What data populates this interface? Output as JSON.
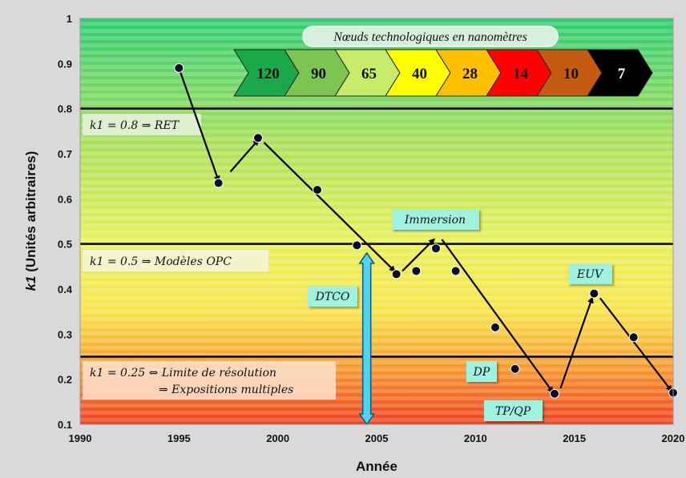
{
  "chart_data": {
    "type": "scatter",
    "xlabel": "Année",
    "ylabel_prefix": "k1",
    "ylabel_rest": " (Unités arbitraires)",
    "xlim": [
      1990,
      2020
    ],
    "ylim": [
      0.1,
      1.0
    ],
    "x_ticks": [
      "1990",
      "1995",
      "2000",
      "2005",
      "2010",
      "2015",
      "2020"
    ],
    "y_ticks": [
      "0.1",
      "0.2",
      "0.3",
      "0.4",
      "0.5",
      "0.6",
      "0.7",
      "0.8",
      "0.9",
      "1"
    ],
    "points": [
      {
        "x": 1995,
        "y": 0.89
      },
      {
        "x": 1997,
        "y": 0.635
      },
      {
        "x": 1999,
        "y": 0.735
      },
      {
        "x": 2002,
        "y": 0.62
      },
      {
        "x": 2004,
        "y": 0.497
      },
      {
        "x": 2006,
        "y": 0.433
      },
      {
        "x": 2007,
        "y": 0.44
      },
      {
        "x": 2008,
        "y": 0.49
      },
      {
        "x": 2009,
        "y": 0.44
      },
      {
        "x": 2011,
        "y": 0.315
      },
      {
        "x": 2012,
        "y": 0.223
      },
      {
        "x": 2014,
        "y": 0.168
      },
      {
        "x": 2016,
        "y": 0.39
      },
      {
        "x": 2018,
        "y": 0.293
      },
      {
        "x": 2020,
        "y": 0.17
      }
    ],
    "threshold_lines": [
      0.8,
      0.5,
      0.25
    ],
    "arrows": [
      {
        "from": [
          1995,
          0.89
        ],
        "to": [
          1997,
          0.64
        ]
      },
      {
        "from": [
          1997.6,
          0.66
        ],
        "to": [
          1999,
          0.73
        ]
      },
      {
        "from": [
          1999.3,
          0.725
        ],
        "to": [
          2005.9,
          0.44
        ]
      },
      {
        "from": [
          2006.3,
          0.44
        ],
        "to": [
          2007.9,
          0.51
        ]
      },
      {
        "from": [
          2008.3,
          0.51
        ],
        "to": [
          2013.9,
          0.172
        ]
      },
      {
        "from": [
          2014.3,
          0.18
        ],
        "to": [
          2015.9,
          0.38
        ]
      },
      {
        "from": [
          2016.3,
          0.38
        ],
        "to": [
          2019.9,
          0.175
        ]
      }
    ],
    "dtco_arrow": {
      "x": 2004.5,
      "y_from": 0.1,
      "y_to": 0.48
    },
    "annotations": {
      "ret": "k1 = 0.8 ⇒ RET",
      "opc": "k1 = 0.5 ⇒ Modèles OPC",
      "limit_line1": "k1 = 0.25 ⇔ Limite de résolution",
      "limit_line2": "⇒ Expositions multiples",
      "dtco": "DTCO",
      "immersion": "Immersion",
      "euv": "EUV",
      "dp": "DP",
      "tpqp": "TP/QP"
    },
    "nodes_title": "Nœuds technologiques en nanomètres",
    "nodes": [
      {
        "label": "120",
        "color": "#1aa84a",
        "text": "#111111"
      },
      {
        "label": "90",
        "color": "#7cc553",
        "text": "#111111"
      },
      {
        "label": "65",
        "color": "#c6ec6a",
        "text": "#111111"
      },
      {
        "label": "40",
        "color": "#ffff00",
        "text": "#111111"
      },
      {
        "label": "28",
        "color": "#ffc000",
        "text": "#111111"
      },
      {
        "label": "14",
        "color": "#ff0000",
        "text": "#111111"
      },
      {
        "label": "10",
        "color": "#c55a11",
        "text": "#111111"
      },
      {
        "label": "7",
        "color": "#000000",
        "text": "#ffffff"
      }
    ],
    "gradient": [
      "#2ecc71",
      "#a8e05a",
      "#e8f05a",
      "#f7e54a",
      "#f9a030",
      "#f04020"
    ]
  }
}
